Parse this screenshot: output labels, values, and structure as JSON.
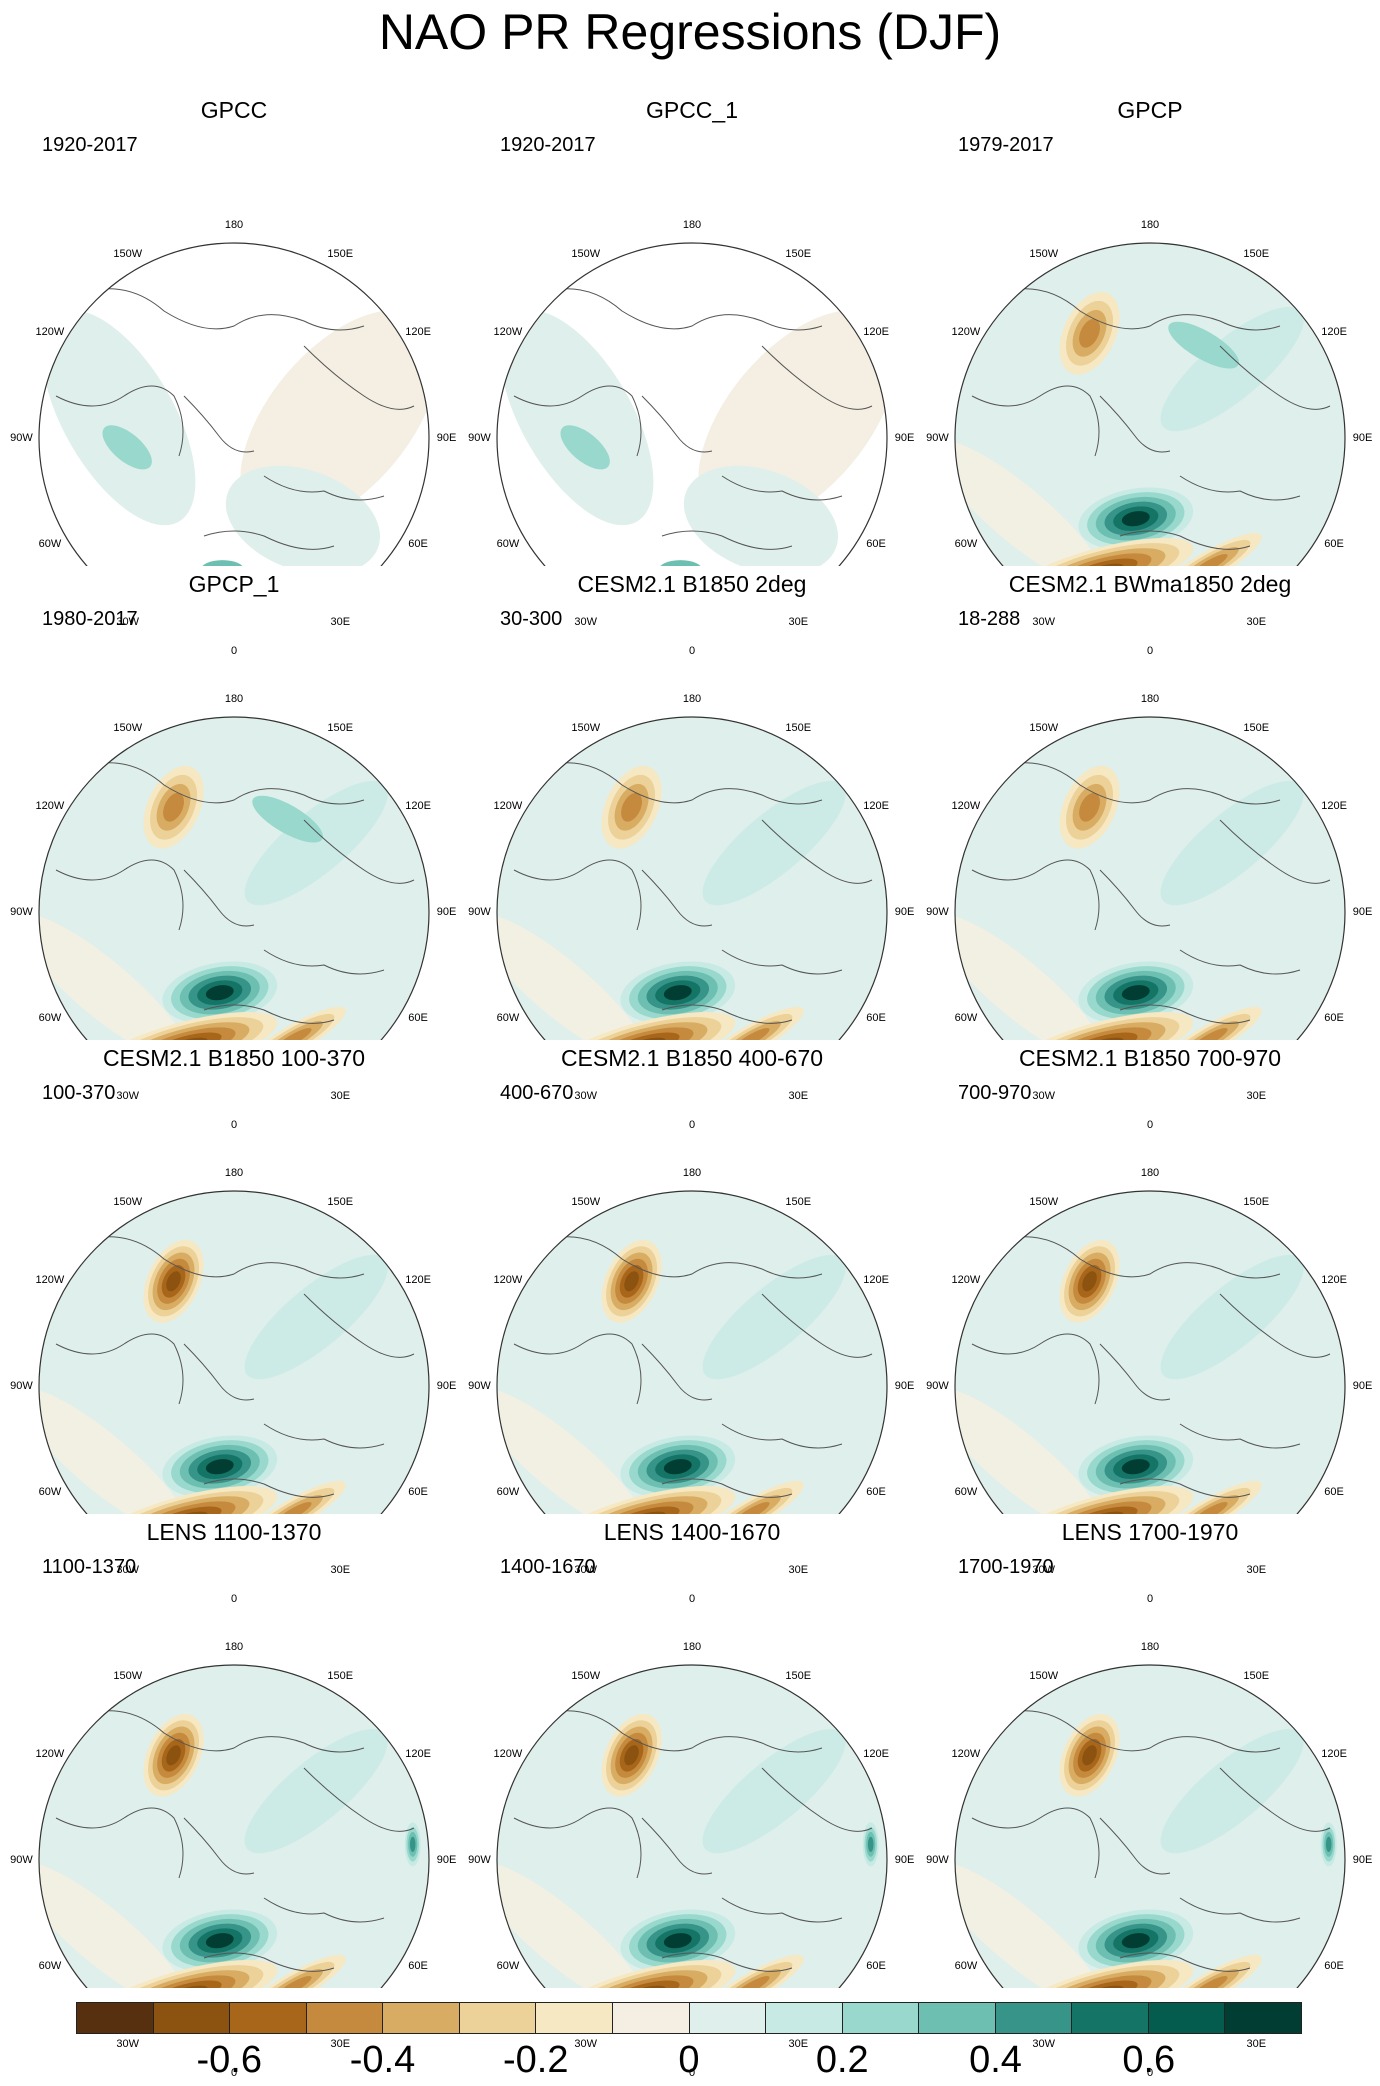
{
  "title": "NAO PR Regressions (DJF)",
  "panels": [
    {
      "title": "GPCC",
      "period": "1920-2017"
    },
    {
      "title": "GPCC_1",
      "period": "1920-2017"
    },
    {
      "title": "GPCP",
      "period": "1979-2017"
    },
    {
      "title": "GPCP_1",
      "period": "1980-2017"
    },
    {
      "title": "CESM2.1 B1850 2deg",
      "period": "30-300"
    },
    {
      "title": "CESM2.1 BWma1850 2deg",
      "period": "18-288"
    },
    {
      "title": "CESM2.1 B1850 100-370",
      "period": "100-370"
    },
    {
      "title": "CESM2.1 B1850 400-670",
      "period": "400-670"
    },
    {
      "title": "CESM2.1 B1850 700-970",
      "period": "700-970"
    },
    {
      "title": "LENS 1100-1370",
      "period": "1100-1370"
    },
    {
      "title": "LENS 1400-1670",
      "period": "1400-1670"
    },
    {
      "title": "LENS 1700-1970",
      "period": "1700-1970"
    }
  ],
  "longitude_labels": [
    "180",
    "150E",
    "120E",
    "90E",
    "60E",
    "30E",
    "0",
    "30W",
    "60W",
    "90W",
    "120W",
    "150W"
  ],
  "colorbar": {
    "colors": [
      "#573010",
      "#8c520f",
      "#a8661b",
      "#c58a3d",
      "#d8ac62",
      "#ecd199",
      "#f6e8c3",
      "#f4efe2",
      "#dfefeb",
      "#c7eae5",
      "#98d8cd",
      "#6dbfb1",
      "#379488",
      "#147466",
      "#045c4f",
      "#013d32"
    ],
    "tick_labels": [
      "-0.6",
      "-0.4",
      "-0.2",
      "0",
      "0.2",
      "0.4",
      "0.6"
    ]
  }
}
